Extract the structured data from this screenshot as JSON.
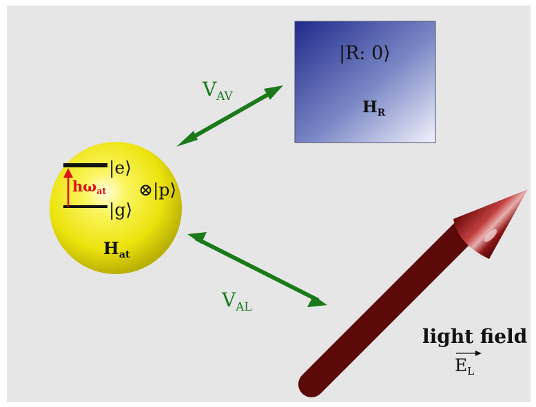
{
  "atom": {
    "excited_state": "|e⟩",
    "ground_state": "|g⟩",
    "transition": {
      "main": "hω",
      "sub": "at"
    },
    "tensor": "⊗|p⟩",
    "hamiltonian": {
      "main": "H",
      "sub": "at"
    }
  },
  "reservoir": {
    "state": "|R: 0⟩",
    "hamiltonian": {
      "main": "H",
      "sub": "R"
    }
  },
  "coupling_vacuum": {
    "main": "V",
    "sub": "AV"
  },
  "coupling_laser": {
    "main": "V",
    "sub": "AL"
  },
  "light": {
    "title": "light field",
    "vector": {
      "main": "E",
      "sub": "L"
    }
  },
  "colors": {
    "background": "#e6e6e6",
    "arrow": "#1a7a1a",
    "laser": "#8b1010",
    "sphere": "#f2ee10",
    "transition": "#e01010"
  }
}
